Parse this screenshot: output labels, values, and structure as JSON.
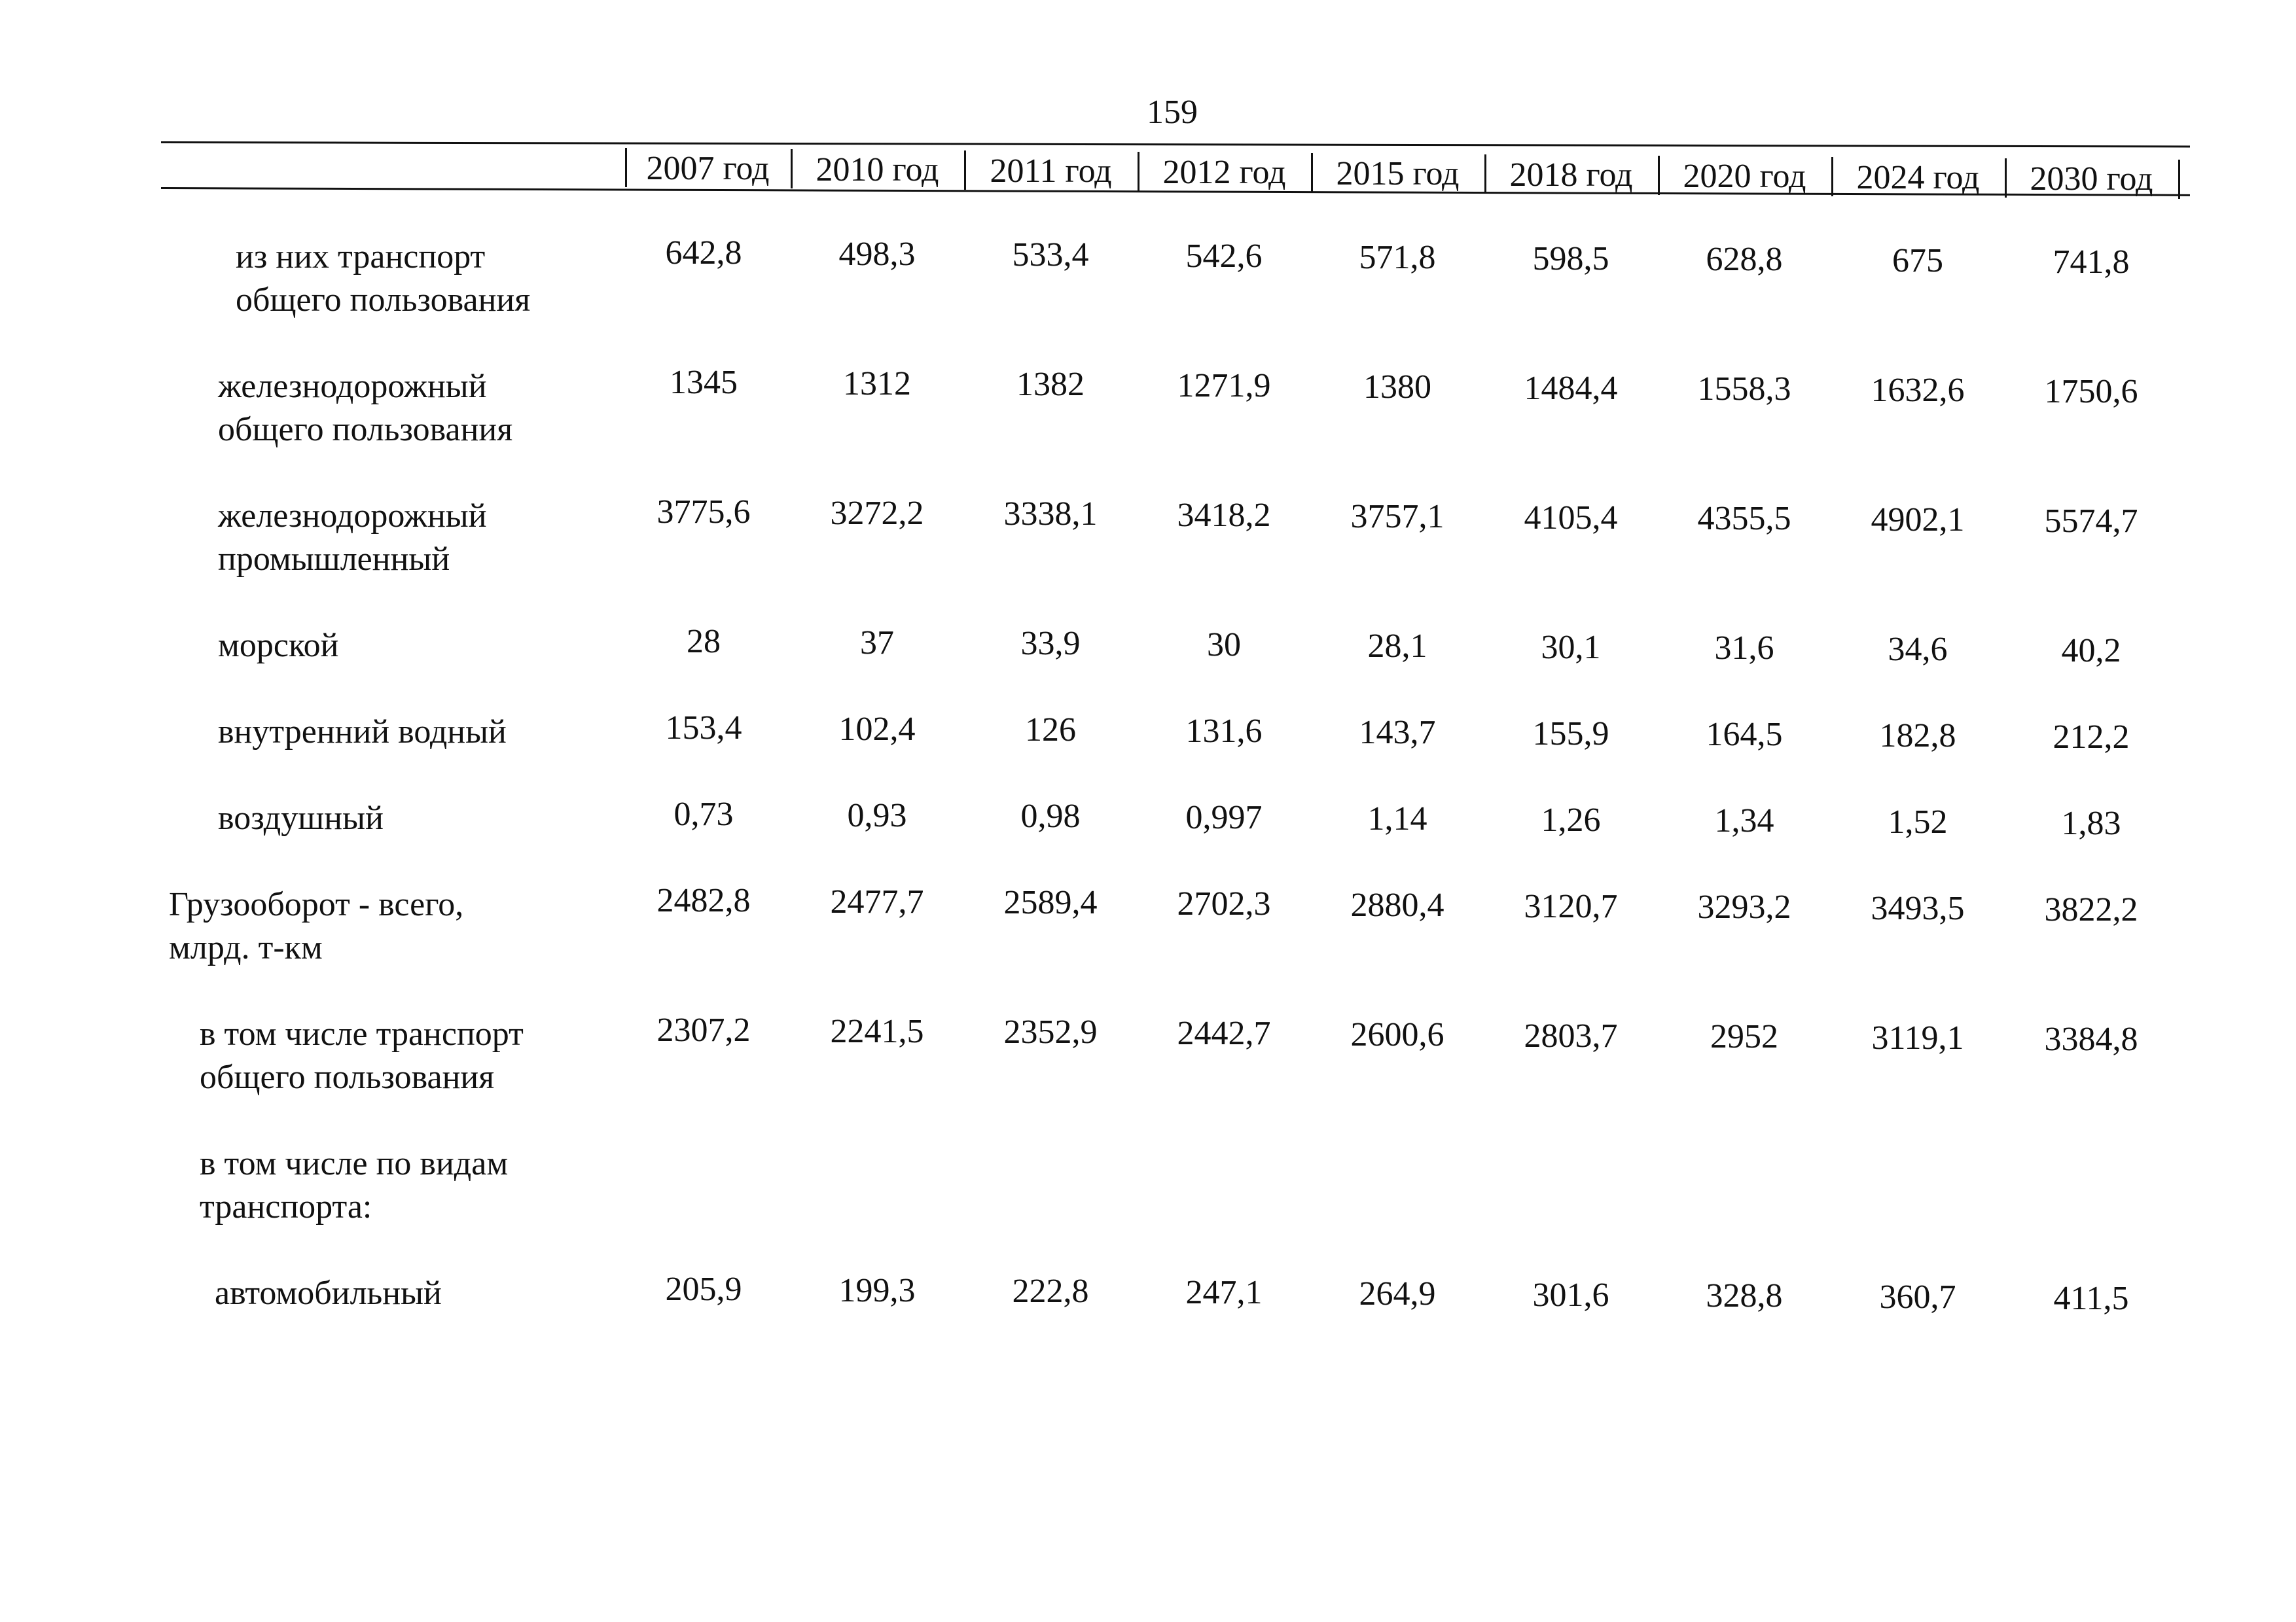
{
  "page_number": "159",
  "columns": [
    "2007 год",
    "2010 год",
    "2011 год",
    "2012 год",
    "2015 год",
    "2018 год",
    "2020 год",
    "2024 год",
    "2030 год"
  ],
  "rows": [
    {
      "label": [
        "из них транспорт",
        "общего пользования"
      ],
      "values": [
        "642,8",
        "498,3",
        "533,4",
        "542,6",
        "571,8",
        "598,5",
        "628,8",
        "675",
        "741,8"
      ]
    },
    {
      "label": [
        "железнодорожный",
        "общего пользования"
      ],
      "values": [
        "1345",
        "1312",
        "1382",
        "1271,9",
        "1380",
        "1484,4",
        "1558,3",
        "1632,6",
        "1750,6"
      ]
    },
    {
      "label": [
        "железнодорожный",
        "промышленный"
      ],
      "values": [
        "3775,6",
        "3272,2",
        "3338,1",
        "3418,2",
        "3757,1",
        "4105,4",
        "4355,5",
        "4902,1",
        "5574,7"
      ]
    },
    {
      "label": [
        "морской"
      ],
      "values": [
        "28",
        "37",
        "33,9",
        "30",
        "28,1",
        "30,1",
        "31,6",
        "34,6",
        "40,2"
      ]
    },
    {
      "label": [
        "внутренний водный"
      ],
      "values": [
        "153,4",
        "102,4",
        "126",
        "131,6",
        "143,7",
        "155,9",
        "164,5",
        "182,8",
        "212,2"
      ]
    },
    {
      "label": [
        "воздушный"
      ],
      "values": [
        "0,73",
        "0,93",
        "0,98",
        "0,997",
        "1,14",
        "1,26",
        "1,34",
        "1,52",
        "1,83"
      ]
    },
    {
      "label": [
        "Грузооборот - всего,",
        "млрд. т-км"
      ],
      "values": [
        "2482,8",
        "2477,7",
        "2589,4",
        "2702,3",
        "2880,4",
        "3120,7",
        "3293,2",
        "3493,5",
        "3822,2"
      ]
    },
    {
      "label": [
        "в том числе транспорт",
        "общего пользования"
      ],
      "values": [
        "2307,2",
        "2241,5",
        "2352,9",
        "2442,7",
        "2600,6",
        "2803,7",
        "2952",
        "3119,1",
        "3384,8"
      ]
    },
    {
      "label": [
        "в том числе по видам",
        "транспорта:"
      ],
      "values": []
    },
    {
      "label": [
        "автомобильный"
      ],
      "values": [
        "205,9",
        "199,3",
        "222,8",
        "247,1",
        "264,9",
        "301,6",
        "328,8",
        "360,7",
        "411,5"
      ]
    }
  ]
}
